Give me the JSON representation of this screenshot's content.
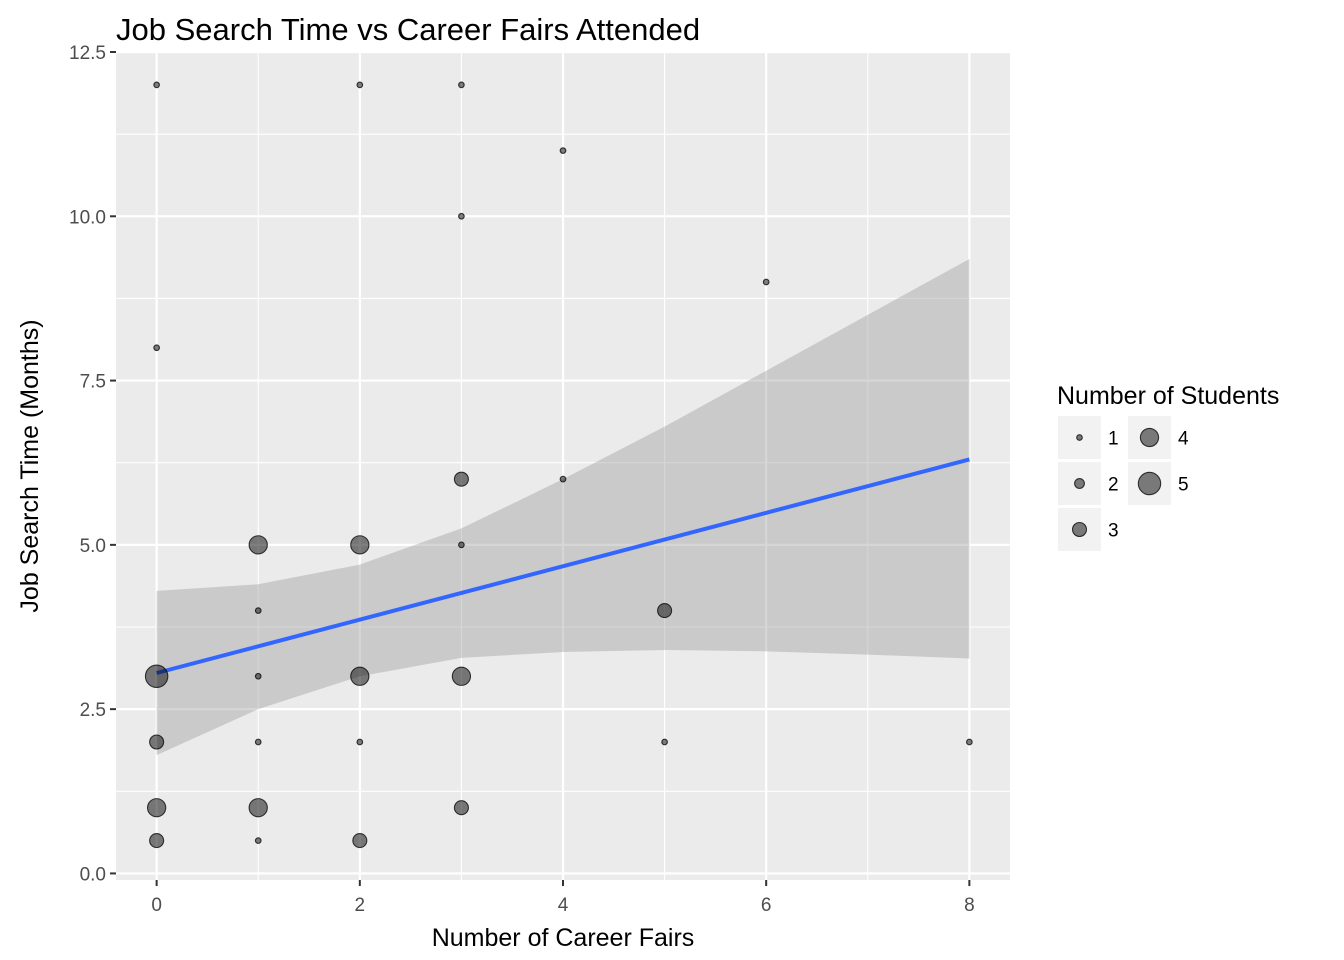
{
  "chart_data": {
    "type": "scatter",
    "title": "Job Search Time vs Career Fairs Attended",
    "xlabel": "Number of Career Fairs",
    "ylabel": "Job Search Time (Months)",
    "xlim": [
      -0.4,
      8.4
    ],
    "ylim": [
      -0.1,
      12.5
    ],
    "x_ticks": [
      0,
      2,
      4,
      6,
      8
    ],
    "x_tick_labels": [
      "0",
      "2",
      "4",
      "6",
      "8"
    ],
    "y_ticks": [
      0,
      2.5,
      5,
      7.5,
      10,
      12.5
    ],
    "y_tick_labels": [
      "0.0",
      "2.5",
      "5.0",
      "7.5",
      "10.0",
      "12.5"
    ],
    "grid": true,
    "legend": {
      "title": "Number of Students",
      "placement": "right",
      "entries": [
        {
          "label": "1",
          "size": 1
        },
        {
          "label": "2",
          "size": 2
        },
        {
          "label": "3",
          "size": 3
        },
        {
          "label": "4",
          "size": 4
        },
        {
          "label": "5",
          "size": 5
        }
      ]
    },
    "points": [
      {
        "x": 0,
        "y": 12,
        "n": 1
      },
      {
        "x": 0,
        "y": 8,
        "n": 1
      },
      {
        "x": 0,
        "y": 3,
        "n": 5
      },
      {
        "x": 0,
        "y": 2,
        "n": 3
      },
      {
        "x": 0,
        "y": 1,
        "n": 4
      },
      {
        "x": 0,
        "y": 0.5,
        "n": 3
      },
      {
        "x": 1,
        "y": 5,
        "n": 4
      },
      {
        "x": 1,
        "y": 4,
        "n": 1
      },
      {
        "x": 1,
        "y": 3,
        "n": 1
      },
      {
        "x": 1,
        "y": 2,
        "n": 1
      },
      {
        "x": 1,
        "y": 1,
        "n": 4
      },
      {
        "x": 1,
        "y": 0.5,
        "n": 1
      },
      {
        "x": 2,
        "y": 12,
        "n": 1
      },
      {
        "x": 2,
        "y": 5,
        "n": 4
      },
      {
        "x": 2,
        "y": 3,
        "n": 4
      },
      {
        "x": 2,
        "y": 2,
        "n": 1
      },
      {
        "x": 2,
        "y": 0.5,
        "n": 3
      },
      {
        "x": 3,
        "y": 12,
        "n": 1
      },
      {
        "x": 3,
        "y": 10,
        "n": 1
      },
      {
        "x": 3,
        "y": 6,
        "n": 3
      },
      {
        "x": 3,
        "y": 5,
        "n": 1
      },
      {
        "x": 3,
        "y": 3,
        "n": 4
      },
      {
        "x": 3,
        "y": 1,
        "n": 3
      },
      {
        "x": 4,
        "y": 11,
        "n": 1
      },
      {
        "x": 4,
        "y": 6,
        "n": 1
      },
      {
        "x": 5,
        "y": 4,
        "n": 3
      },
      {
        "x": 5,
        "y": 2,
        "n": 1
      },
      {
        "x": 6,
        "y": 9,
        "n": 1
      },
      {
        "x": 8,
        "y": 2,
        "n": 1
      }
    ],
    "trend_line": {
      "method": "linear",
      "x": [
        0,
        8
      ],
      "y": [
        3.05,
        6.3
      ]
    },
    "confidence_band": {
      "x": [
        0,
        1,
        2,
        3,
        4,
        5,
        6,
        7,
        8
      ],
      "upper": [
        4.3,
        4.4,
        4.7,
        5.25,
        6.0,
        6.8,
        7.65,
        8.5,
        9.35
      ],
      "lower": [
        1.8,
        2.5,
        3.0,
        3.28,
        3.37,
        3.4,
        3.38,
        3.33,
        3.27
      ]
    },
    "colors": {
      "panel": "#ebebeb",
      "grid": "#ffffff",
      "point": "#000000",
      "line": "#3366ff",
      "band": "#999999"
    }
  }
}
